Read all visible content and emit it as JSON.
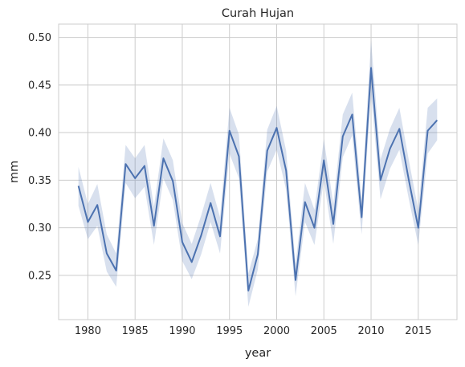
{
  "chart_data": {
    "type": "line",
    "title": "Curah Hujan",
    "xlabel": "year",
    "ylabel": "mm",
    "xlim": [
      1976.9,
      2019.1
    ],
    "ylim": [
      0.2035,
      0.514
    ],
    "xticks": [
      1980,
      1985,
      1990,
      1995,
      2000,
      2005,
      2010,
      2015
    ],
    "yticks": [
      0.25,
      0.3,
      0.35,
      0.4,
      0.45,
      0.5
    ],
    "ytick_labels": [
      "0.25",
      "0.30",
      "0.35",
      "0.40",
      "0.45",
      "0.50"
    ],
    "grid": true,
    "line_color": "#4c72b0",
    "band_color": "#4c72b0",
    "x": [
      1979,
      1980,
      1981,
      1982,
      1983,
      1984,
      1985,
      1986,
      1987,
      1988,
      1989,
      1990,
      1991,
      1992,
      1993,
      1994,
      1995,
      1996,
      1997,
      1998,
      1999,
      2000,
      2001,
      2002,
      2003,
      2004,
      2005,
      2006,
      2007,
      2008,
      2009,
      2010,
      2011,
      2012,
      2013,
      2014,
      2015,
      2016,
      2017
    ],
    "y": [
      0.344,
      0.306,
      0.324,
      0.273,
      0.255,
      0.367,
      0.352,
      0.365,
      0.302,
      0.373,
      0.349,
      0.285,
      0.264,
      0.292,
      0.326,
      0.291,
      0.402,
      0.375,
      0.234,
      0.272,
      0.381,
      0.405,
      0.36,
      0.245,
      0.327,
      0.3,
      0.371,
      0.304,
      0.396,
      0.419,
      0.311,
      0.468,
      0.35,
      0.383,
      0.404,
      0.35,
      0.3,
      0.402,
      0.413
    ],
    "ci_lower": [
      0.323,
      0.288,
      0.302,
      0.254,
      0.238,
      0.347,
      0.331,
      0.343,
      0.282,
      0.352,
      0.329,
      0.265,
      0.246,
      0.272,
      0.306,
      0.273,
      0.378,
      0.352,
      0.217,
      0.256,
      0.359,
      0.382,
      0.34,
      0.228,
      0.306,
      0.282,
      0.35,
      0.283,
      0.374,
      0.397,
      0.293,
      0.44,
      0.33,
      0.362,
      0.382,
      0.33,
      0.282,
      0.378,
      0.392
    ],
    "ci_upper": [
      0.364,
      0.325,
      0.346,
      0.293,
      0.273,
      0.387,
      0.373,
      0.387,
      0.322,
      0.394,
      0.371,
      0.305,
      0.283,
      0.313,
      0.347,
      0.311,
      0.426,
      0.398,
      0.252,
      0.288,
      0.403,
      0.428,
      0.381,
      0.262,
      0.347,
      0.319,
      0.393,
      0.325,
      0.419,
      0.442,
      0.33,
      0.497,
      0.372,
      0.404,
      0.426,
      0.371,
      0.319,
      0.426,
      0.436
    ]
  }
}
